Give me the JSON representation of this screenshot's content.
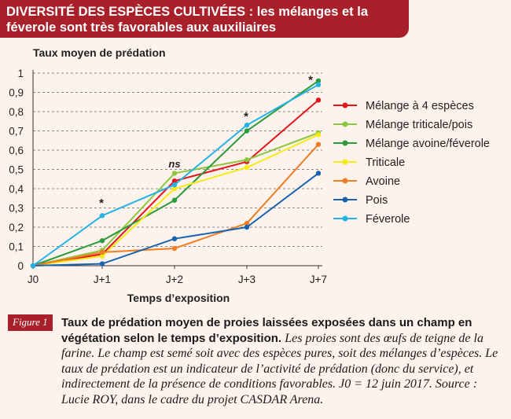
{
  "header": {
    "title": "DIVERSITÉ DES ESPÈCES CULTIVÉES : les mélanges et la féverole sont très favorables aux auxiliaires"
  },
  "caption": {
    "tag": "Figure 1",
    "bold": "Taux de prédation moyen de proies laissées exposées dans un champ en végétation selon le temps d’exposition.",
    "italic": "Les proies sont des œufs de teigne de la farine. Le champ est semé soit avec des espèces pures, soit des mélanges d’espèces. Le taux de prédation est un indicateur de l’activité de prédation (donc du service), et indirectement de la présence de conditions favorables. J0 = 12 juin 2017. Source : Lucie ROY, dans le cadre du projet CASDAR Arena."
  },
  "chart_data": {
    "type": "line",
    "ylabel": "Taux moyen de prédation",
    "xlabel": "Temps d’exposition",
    "categories": [
      "J0",
      "J+1",
      "J+2",
      "J+3",
      "J+7"
    ],
    "ylim": [
      0,
      1
    ],
    "yticks": [
      "0",
      "0,1",
      "0,2",
      "0,3",
      "0,4",
      "0,5",
      "0,6",
      "0,7",
      "0,8",
      "0,9",
      "1"
    ],
    "grid": true,
    "legend_position": "right",
    "annotations": [
      {
        "category": "J+1",
        "y": 0.33,
        "text": "*"
      },
      {
        "category": "J+2",
        "y": 0.51,
        "text": "ns"
      },
      {
        "category": "J+3",
        "y": 0.78,
        "text": "*"
      },
      {
        "category": "J+7",
        "y": 0.97,
        "text": "*"
      }
    ],
    "series": [
      {
        "name": "Mélange à 4 espèces",
        "color": "#e3141c",
        "values": [
          0,
          0.06,
          0.44,
          0.54,
          0.86
        ]
      },
      {
        "name": "Mélange triticale/pois",
        "color": "#8dc63f",
        "values": [
          0,
          0.08,
          0.48,
          0.55,
          0.69
        ]
      },
      {
        "name": "Mélange avoine/féverole",
        "color": "#2a9a3a",
        "values": [
          0,
          0.13,
          0.34,
          0.7,
          0.96
        ]
      },
      {
        "name": "Triticale",
        "color": "#f5ea14",
        "values": [
          0,
          0.05,
          0.4,
          0.51,
          0.68
        ]
      },
      {
        "name": "Avoine",
        "color": "#ee7d23",
        "values": [
          0,
          0.07,
          0.09,
          0.22,
          0.63
        ]
      },
      {
        "name": "Pois",
        "color": "#1a63ae",
        "values": [
          0,
          0.01,
          0.14,
          0.2,
          0.48
        ]
      },
      {
        "name": "Féverole",
        "color": "#25b1e6",
        "values": [
          0,
          0.26,
          0.42,
          0.73,
          0.94
        ]
      }
    ]
  }
}
